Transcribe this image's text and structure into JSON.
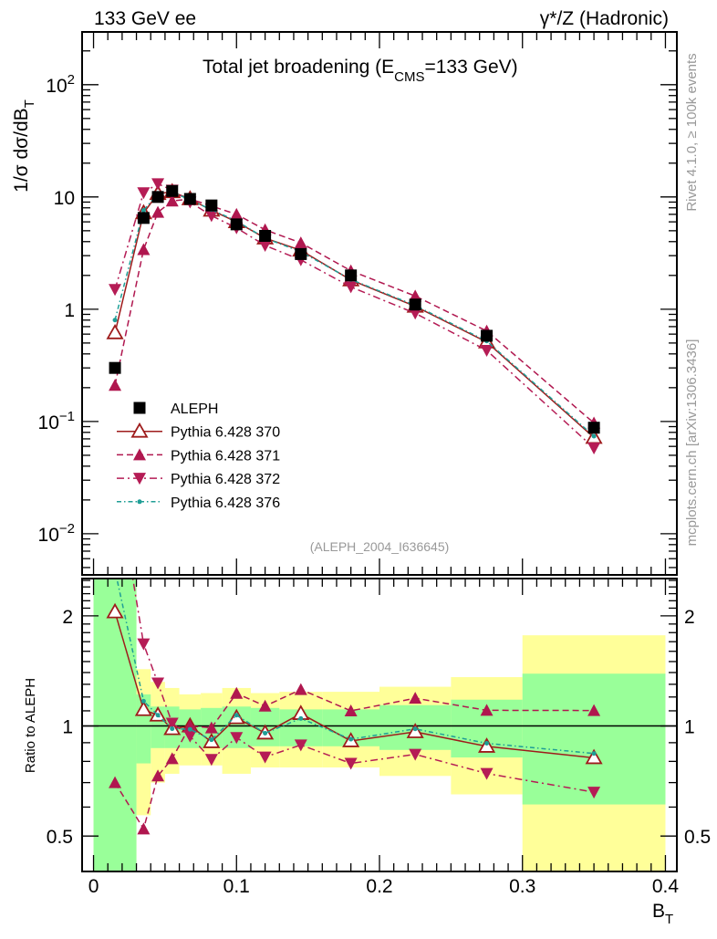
{
  "header": {
    "left": "133 GeV ee",
    "right": "γ*/Z (Hadronic)"
  },
  "side_labels": {
    "rivet": "Rivet 4.1.0, ≥ 100k events",
    "mcplots": "mcplots.cern.ch [arXiv:1306.3436]"
  },
  "chart_data": [
    {
      "type": "line",
      "title": "Total jet broadening (E_CMS=133 GeV)",
      "title_main": "Total jet broadening (E",
      "title_sub": "CMS",
      "title_tail": "=133 GeV)",
      "ylabel": "1/σ  dσ/dB_T",
      "ylabel_main": "1/σ  dσ/dB",
      "ylabel_sub": "T",
      "yscale": "log",
      "ylim": [
        0.0043,
        295
      ],
      "xlim": [
        -0.008,
        0.408
      ],
      "ytick_labels": [
        {
          "v": 0.01,
          "base": "10",
          "exp": "−2"
        },
        {
          "v": 0.1,
          "base": "10",
          "exp": "−1"
        },
        {
          "v": 1,
          "base": "1",
          "exp": ""
        },
        {
          "v": 10,
          "base": "10",
          "exp": ""
        },
        {
          "v": 100,
          "base": "10",
          "exp": "2"
        }
      ],
      "annotation": "(ALEPH_2004_I636645)",
      "legend_position": "lower-left",
      "x": [
        0.015,
        0.035,
        0.045,
        0.055,
        0.0675,
        0.0825,
        0.1,
        0.12,
        0.145,
        0.18,
        0.225,
        0.275,
        0.35
      ],
      "series": [
        {
          "name": "ALEPH",
          "color": "#000000",
          "marker": "square",
          "line": "none",
          "values": [
            0.3,
            6.5,
            10.0,
            11.3,
            9.6,
            8.4,
            5.7,
            4.5,
            3.1,
            2.0,
            1.1,
            0.58,
            0.088
          ]
        },
        {
          "name": "Pythia 6.428 370",
          "color": "#9e1b1b",
          "marker": "triangle-open",
          "line": "solid",
          "values": [
            0.615,
            7.2,
            10.7,
            11.1,
            9.6,
            7.6,
            6.0,
            4.3,
            3.35,
            1.82,
            1.06,
            0.51,
            0.072
          ]
        },
        {
          "name": "Pythia 6.428 371",
          "color": "#b0174f",
          "marker": "triangle-up",
          "line": "dashed",
          "values": [
            0.21,
            3.4,
            7.3,
            9.2,
            9.6,
            8.3,
            7.0,
            5.1,
            3.9,
            2.2,
            1.31,
            0.64,
            0.097
          ]
        },
        {
          "name": "Pythia 6.428 372",
          "color": "#b51c55",
          "marker": "triangle-down",
          "line": "dashdot",
          "values": [
            1.5,
            10.9,
            13.1,
            11.5,
            9.0,
            6.8,
            5.3,
            3.7,
            2.75,
            1.58,
            0.92,
            0.43,
            0.058
          ]
        },
        {
          "name": "Pythia 6.428 376",
          "color": "#1f9e96",
          "marker": "dot",
          "line": "dashdotdense",
          "values": [
            0.8,
            7.6,
            10.7,
            11.1,
            9.4,
            7.7,
            6.1,
            4.3,
            3.25,
            1.84,
            1.08,
            0.52,
            0.074
          ]
        }
      ]
    },
    {
      "type": "line",
      "ylabel": "Ratio to ALEPH",
      "xlabel": "B_T",
      "xlabel_main": "B",
      "xlabel_sub": "T",
      "yscale": "log",
      "ylim": [
        0.4,
        2.53
      ],
      "xlim": [
        -0.008,
        0.408
      ],
      "yticks": [
        {
          "v": 0.5,
          "label": "0.5"
        },
        {
          "v": 1,
          "label": "1"
        },
        {
          "v": 2,
          "label": "2"
        }
      ],
      "xticks": [
        {
          "v": 0,
          "label": "0"
        },
        {
          "v": 0.1,
          "label": "0.1"
        },
        {
          "v": 0.2,
          "label": "0.2"
        },
        {
          "v": 0.3,
          "label": "0.3"
        },
        {
          "v": 0.4,
          "label": "0.4"
        }
      ],
      "reference": "ALEPH",
      "bin_edges": [
        0,
        0.03,
        0.04,
        0.05,
        0.06,
        0.075,
        0.09,
        0.11,
        0.13,
        0.16,
        0.2,
        0.25,
        0.3,
        0.4
      ],
      "band_total": {
        "color": "#ffff99",
        "lo": [
          0.3,
          0.57,
          0.7,
          0.74,
          0.78,
          0.78,
          0.74,
          0.77,
          0.77,
          0.77,
          0.73,
          0.65,
          0.3
        ],
        "hi": [
          3,
          1.43,
          1.32,
          1.27,
          1.22,
          1.23,
          1.27,
          1.23,
          1.24,
          1.24,
          1.28,
          1.36,
          1.77
        ]
      },
      "band_stat": {
        "color": "#99ff99",
        "lo": [
          0.3,
          0.79,
          0.87,
          0.87,
          0.87,
          0.87,
          0.87,
          0.88,
          0.88,
          0.88,
          0.86,
          0.82,
          0.61
        ],
        "hi": [
          3,
          1.22,
          1.13,
          1.13,
          1.11,
          1.12,
          1.13,
          1.12,
          1.11,
          1.11,
          1.14,
          1.18,
          1.39
        ]
      }
    }
  ]
}
